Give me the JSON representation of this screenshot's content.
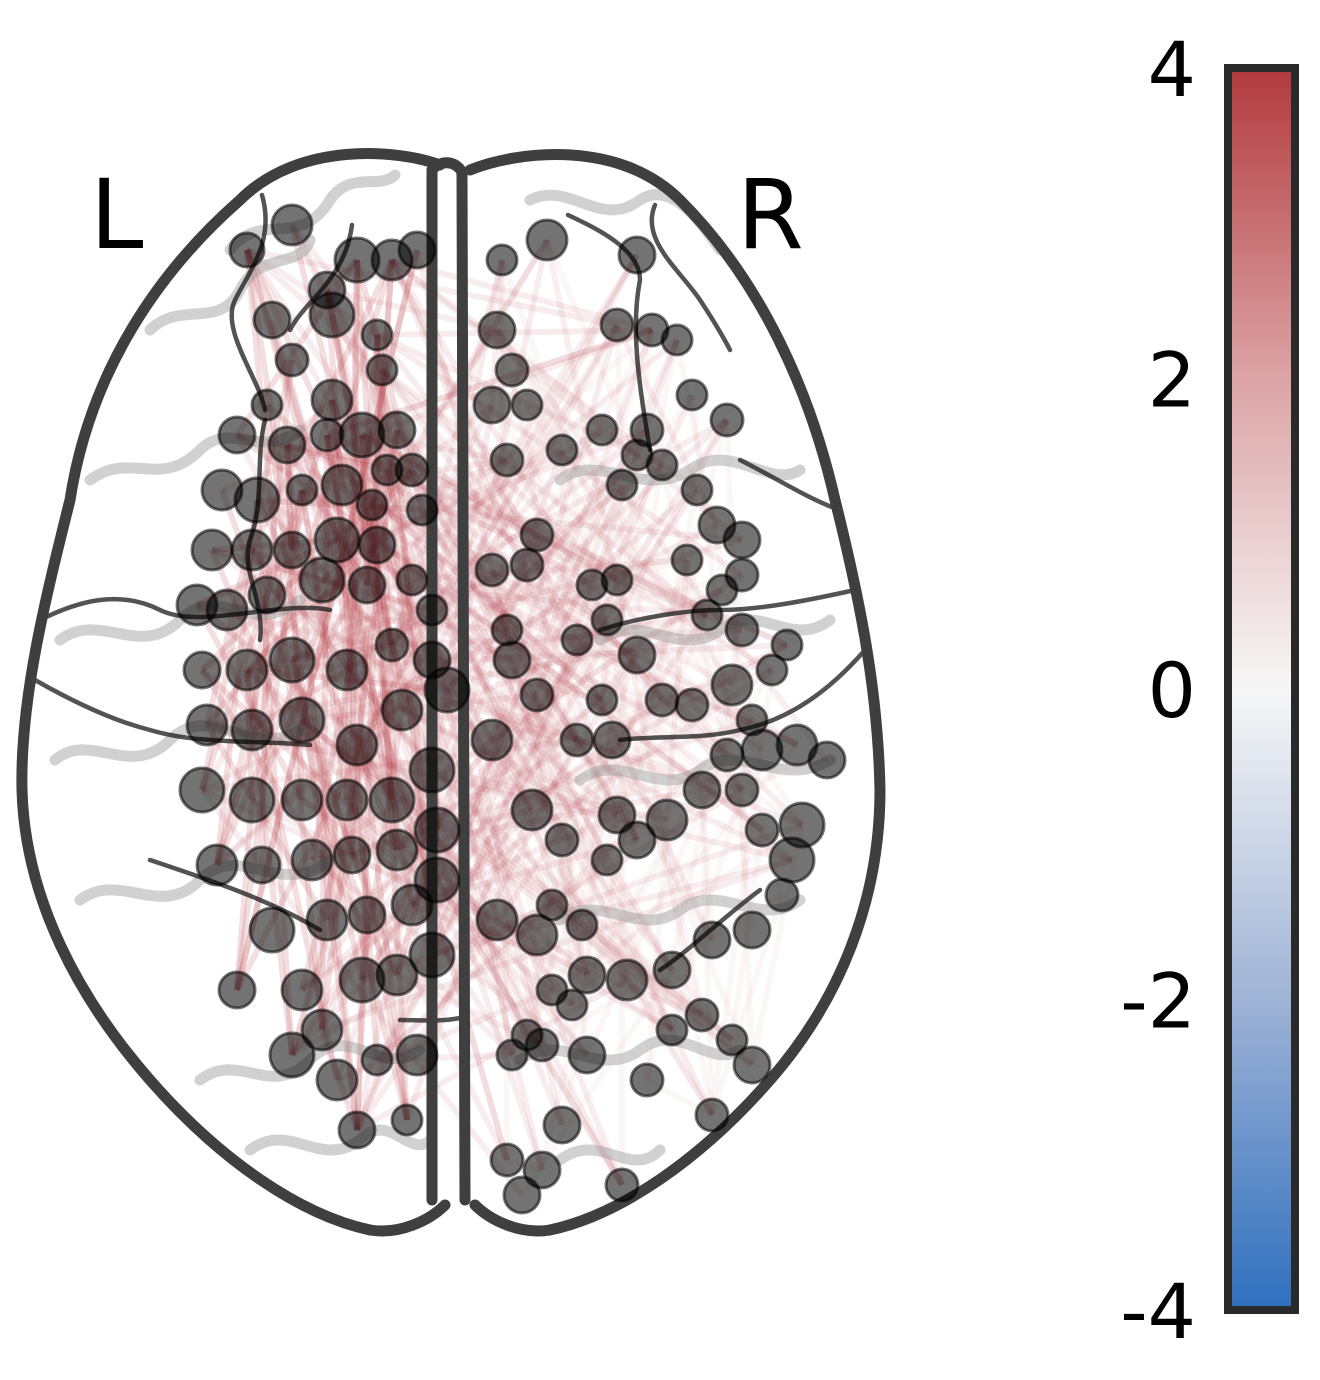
{
  "chart_data": {
    "type": "scatter",
    "view": "axial",
    "hemisphere_labels": {
      "left": "L",
      "right": "R"
    },
    "colorbar": {
      "min": -4,
      "max": 4,
      "ticks": [
        "4",
        "2",
        "0",
        "-2",
        "-4"
      ],
      "tick_values": [
        4,
        2,
        0,
        -2,
        -4
      ],
      "colormap": [
        "#2e6fbe",
        "#f7f7f7",
        "#b23a3e"
      ]
    },
    "node_color": "#000000",
    "node_opacity": 0.55,
    "edge_color_positive": "#b23a3e",
    "grid": false,
    "nodes": [
      [
        -205,
        440,
        17
      ],
      [
        -160,
        465,
        20
      ],
      [
        -125,
        400,
        18
      ],
      [
        -95,
        430,
        22
      ],
      [
        -60,
        430,
        20
      ],
      [
        -35,
        440,
        18
      ],
      [
        -180,
        370,
        18
      ],
      [
        -120,
        375,
        22
      ],
      [
        -75,
        355,
        15
      ],
      [
        -160,
        330,
        16
      ],
      [
        -70,
        320,
        15
      ],
      [
        -120,
        290,
        20
      ],
      [
        -185,
        285,
        15
      ],
      [
        -215,
        255,
        18
      ],
      [
        -165,
        245,
        18
      ],
      [
        -125,
        255,
        16
      ],
      [
        -90,
        255,
        22
      ],
      [
        -55,
        260,
        18
      ],
      [
        -230,
        200,
        20
      ],
      [
        -195,
        190,
        22
      ],
      [
        -150,
        200,
        15
      ],
      [
        -110,
        205,
        20
      ],
      [
        -80,
        185,
        15
      ],
      [
        -40,
        220,
        16
      ],
      [
        -65,
        220,
        15
      ],
      [
        -240,
        140,
        20
      ],
      [
        -200,
        140,
        20
      ],
      [
        -160,
        140,
        18
      ],
      [
        -115,
        150,
        22
      ],
      [
        -75,
        145,
        18
      ],
      [
        -30,
        180,
        15
      ],
      [
        -255,
        85,
        20
      ],
      [
        -225,
        80,
        20
      ],
      [
        -185,
        95,
        18
      ],
      [
        -130,
        110,
        22
      ],
      [
        -85,
        105,
        18
      ],
      [
        -40,
        110,
        15
      ],
      [
        -250,
        20,
        18
      ],
      [
        -205,
        20,
        20
      ],
      [
        -160,
        30,
        22
      ],
      [
        -105,
        20,
        20
      ],
      [
        -60,
        45,
        16
      ],
      [
        -20,
        80,
        15
      ],
      [
        -245,
        -35,
        20
      ],
      [
        -200,
        -40,
        20
      ],
      [
        -150,
        -30,
        22
      ],
      [
        -95,
        -55,
        20
      ],
      [
        -50,
        -20,
        20
      ],
      [
        -20,
        30,
        18
      ],
      [
        -250,
        -100,
        22
      ],
      [
        -200,
        -110,
        22
      ],
      [
        -150,
        -110,
        20
      ],
      [
        -105,
        -110,
        20
      ],
      [
        -60,
        -110,
        22
      ],
      [
        -20,
        -80,
        22
      ],
      [
        -235,
        -175,
        20
      ],
      [
        -190,
        -175,
        18
      ],
      [
        -140,
        -170,
        20
      ],
      [
        -100,
        -165,
        18
      ],
      [
        -55,
        -160,
        20
      ],
      [
        -15,
        -140,
        22
      ],
      [
        -180,
        -240,
        22
      ],
      [
        -125,
        -230,
        20
      ],
      [
        -85,
        -225,
        18
      ],
      [
        -40,
        -215,
        20
      ],
      [
        -215,
        -300,
        18
      ],
      [
        -150,
        -300,
        20
      ],
      [
        -90,
        -290,
        22
      ],
      [
        -55,
        -285,
        20
      ],
      [
        -20,
        -265,
        22
      ],
      [
        -160,
        -365,
        22
      ],
      [
        -115,
        -390,
        20
      ],
      [
        -75,
        -370,
        15
      ],
      [
        -35,
        -365,
        20
      ],
      [
        -95,
        -440,
        18
      ],
      [
        -45,
        -430,
        15
      ],
      [
        -130,
        -340,
        20
      ],
      [
        -5,
        0,
        22
      ],
      [
        -15,
        -190,
        22
      ],
      [
        95,
        450,
        20
      ],
      [
        50,
        430,
        15
      ],
      [
        185,
        435,
        18
      ],
      [
        165,
        365,
        16
      ],
      [
        200,
        360,
        16
      ],
      [
        225,
        350,
        15
      ],
      [
        240,
        295,
        15
      ],
      [
        275,
        270,
        16
      ],
      [
        195,
        260,
        16
      ],
      [
        150,
        260,
        15
      ],
      [
        110,
        240,
        15
      ],
      [
        185,
        235,
        15
      ],
      [
        210,
        225,
        15
      ],
      [
        170,
        205,
        15
      ],
      [
        245,
        200,
        15
      ],
      [
        265,
        165,
        18
      ],
      [
        290,
        150,
        18
      ],
      [
        235,
        130,
        15
      ],
      [
        290,
        115,
        16
      ],
      [
        270,
        100,
        15
      ],
      [
        165,
        110,
        15
      ],
      [
        140,
        105,
        15
      ],
      [
        155,
        70,
        15
      ],
      [
        125,
        50,
        15
      ],
      [
        185,
        35,
        18
      ],
      [
        255,
        75,
        15
      ],
      [
        290,
        60,
        16
      ],
      [
        335,
        45,
        15
      ],
      [
        320,
        20,
        15
      ],
      [
        280,
        5,
        20
      ],
      [
        240,
        -15,
        16
      ],
      [
        210,
        -10,
        16
      ],
      [
        150,
        -10,
        15
      ],
      [
        160,
        -50,
        18
      ],
      [
        125,
        -50,
        16
      ],
      [
        275,
        -65,
        16
      ],
      [
        310,
        -60,
        20
      ],
      [
        345,
        -55,
        20
      ],
      [
        375,
        -70,
        18
      ],
      [
        300,
        -30,
        15
      ],
      [
        45,
        360,
        18
      ],
      [
        60,
        320,
        16
      ],
      [
        75,
        285,
        15
      ],
      [
        40,
        285,
        18
      ],
      [
        55,
        230,
        16
      ],
      [
        85,
        155,
        16
      ],
      [
        75,
        125,
        16
      ],
      [
        40,
        120,
        16
      ],
      [
        55,
        60,
        15
      ],
      [
        60,
        30,
        18
      ],
      [
        85,
        -5,
        16
      ],
      [
        40,
        -50,
        20
      ],
      [
        110,
        -150,
        16
      ],
      [
        165,
        -125,
        18
      ],
      [
        185,
        -150,
        18
      ],
      [
        80,
        -120,
        20
      ],
      [
        100,
        -215,
        15
      ],
      [
        130,
        -235,
        15
      ],
      [
        85,
        -245,
        20
      ],
      [
        45,
        -230,
        20
      ],
      [
        100,
        -300,
        15
      ],
      [
        135,
        -285,
        18
      ],
      [
        175,
        -290,
        20
      ],
      [
        220,
        -280,
        18
      ],
      [
        260,
        -250,
        18
      ],
      [
        300,
        -240,
        18
      ],
      [
        330,
        -205,
        16
      ],
      [
        340,
        -170,
        22
      ],
      [
        350,
        -135,
        22
      ],
      [
        310,
        -140,
        16
      ],
      [
        290,
        -100,
        16
      ],
      [
        250,
        -100,
        18
      ],
      [
        215,
        -130,
        20
      ],
      [
        155,
        -170,
        15
      ],
      [
        120,
        -315,
        15
      ],
      [
        75,
        -345,
        15
      ],
      [
        60,
        -365,
        15
      ],
      [
        90,
        -355,
        16
      ],
      [
        135,
        -365,
        18
      ],
      [
        195,
        -390,
        16
      ],
      [
        250,
        -325,
        16
      ],
      [
        220,
        -340,
        15
      ],
      [
        280,
        -350,
        15
      ],
      [
        300,
        -375,
        18
      ],
      [
        260,
        -425,
        16
      ],
      [
        110,
        -435,
        18
      ],
      [
        55,
        -470,
        16
      ],
      [
        90,
        -480,
        18
      ],
      [
        170,
        -495,
        16
      ],
      [
        70,
        -505,
        18
      ]
    ]
  }
}
